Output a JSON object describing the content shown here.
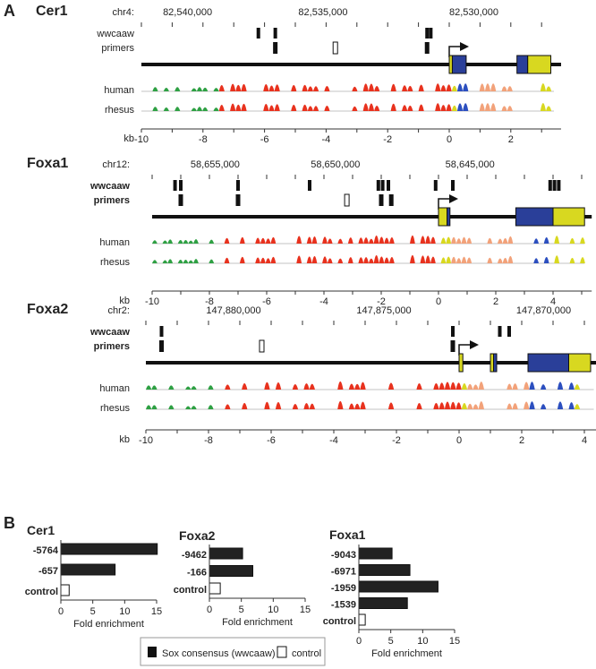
{
  "panel_a": {
    "label": "A",
    "track_labels": {
      "sites": "wwcaaw",
      "primers": "primers",
      "human": "human",
      "rhesus": "rhesus",
      "axis": "kb"
    },
    "loci": [
      {
        "name": "Cer1",
        "chrom": "chr4:",
        "coord_labels": [
          {
            "text": "82,540,000",
            "kb": -8.5
          },
          {
            "text": "82,535,000",
            "kb": -4.1
          },
          {
            "text": "82,530,000",
            "kb": 0.8
          }
        ],
        "range": [
          -10,
          3.4
        ],
        "axis_ticks": [
          -10,
          -8,
          -6,
          -4,
          -2,
          0,
          2
        ],
        "wwcaaw": [
          -6.2,
          -5.65,
          -0.72,
          -0.6
        ],
        "primers_sox": [
          -5.65,
          -0.72
        ],
        "primers_control": [
          -3.7
        ],
        "exons": [
          {
            "start": 0,
            "end": 0.1,
            "color": "#d8d820"
          },
          {
            "start": 0.1,
            "end": 0.55,
            "color": "#2a3f99"
          },
          {
            "start": 2.2,
            "end": 2.55,
            "color": "#2a3f99"
          },
          {
            "start": 2.55,
            "end": 3.3,
            "color": "#d8d820"
          }
        ]
      },
      {
        "name": "Foxa1",
        "chrom": "chr12:",
        "coord_labels": [
          {
            "text": "58,655,000",
            "kb": -7.8
          },
          {
            "text": "58,650,000",
            "kb": -3.6
          },
          {
            "text": "58,645,000",
            "kb": 1.1
          }
        ],
        "range": [
          -10,
          5.1
        ],
        "axis_ticks": [
          -10,
          -8,
          -6,
          -4,
          -2,
          0,
          2,
          4
        ],
        "wwcaaw": [
          -9.2,
          -9.0,
          -7.0,
          -4.5,
          -2.1,
          -1.95,
          -1.75,
          -0.1,
          0.5,
          3.9,
          4.05,
          4.2
        ],
        "primers_sox": [
          -9.0,
          -7.0,
          -2.0,
          -1.65
        ],
        "primers_control": [
          -3.2
        ],
        "exons": [
          {
            "start": 0,
            "end": 0.3,
            "color": "#d8d820"
          },
          {
            "start": 0.3,
            "end": 0.4,
            "color": "#2a3f99"
          },
          {
            "start": 2.7,
            "end": 4.0,
            "color": "#2a3f99"
          },
          {
            "start": 4.0,
            "end": 5.1,
            "color": "#d8d820"
          }
        ]
      },
      {
        "name": "Foxa2",
        "chrom": "chr2:",
        "coord_labels": [
          {
            "text": "147,880,000",
            "kb": -7.2
          },
          {
            "text": "147,875,000",
            "kb": -2.4
          },
          {
            "text": "147,870,000",
            "kb": 2.7
          }
        ],
        "range": [
          -10,
          4.3
        ],
        "axis_ticks": [
          -10,
          -8,
          -6,
          -4,
          -2,
          0,
          2,
          4
        ],
        "wwcaaw": [
          -9.5,
          -0.2,
          1.3,
          1.6
        ],
        "primers_sox": [
          -9.5,
          -0.2
        ],
        "primers_control": [
          -6.3
        ],
        "exons": [
          {
            "start": 0,
            "end": 0.12,
            "color": "#d8d820"
          },
          {
            "start": 1.0,
            "end": 1.1,
            "color": "#d8d820"
          },
          {
            "start": 1.1,
            "end": 1.2,
            "color": "#2a3f99"
          },
          {
            "start": 2.2,
            "end": 3.5,
            "color": "#2a3f99"
          },
          {
            "start": 3.5,
            "end": 4.2,
            "color": "#d8d820"
          }
        ]
      }
    ]
  },
  "panel_b": {
    "label": "B"
  },
  "chart_data": [
    {
      "type": "bar",
      "orientation": "horizontal",
      "title": "Cer1",
      "categories": [
        "-5764",
        "-657",
        "control"
      ],
      "values": [
        15.1,
        8.5,
        1.3
      ],
      "kinds": [
        "sox",
        "sox",
        "control"
      ],
      "xlabel": "Fold enrichment",
      "xlim": [
        0,
        15
      ],
      "xticks": [
        0,
        5,
        10,
        15
      ]
    },
    {
      "type": "bar",
      "orientation": "horizontal",
      "title": "Foxa2",
      "categories": [
        "-9462",
        "-166",
        "control"
      ],
      "values": [
        5.2,
        6.8,
        1.7
      ],
      "kinds": [
        "sox",
        "sox",
        "control"
      ],
      "xlabel": "Fold enrichment",
      "xlim": [
        0,
        15
      ],
      "xticks": [
        0,
        5,
        10,
        15
      ]
    },
    {
      "type": "bar",
      "orientation": "horizontal",
      "title": "Foxa1",
      "categories": [
        "-9043",
        "-6971",
        "-1959",
        "-1539",
        "control"
      ],
      "values": [
        5.2,
        8.0,
        12.4,
        7.6,
        1.0
      ],
      "kinds": [
        "sox",
        "sox",
        "sox",
        "sox",
        "control"
      ],
      "xlabel": "Fold enrichment",
      "xlim": [
        0,
        15
      ],
      "xticks": [
        0,
        5,
        10,
        15
      ]
    }
  ],
  "legend": {
    "sox": "Sox consensus (wwcaaw)",
    "control": "control"
  },
  "colors": {
    "bar": "#222222",
    "exon_blue": "#2a3f99",
    "exon_yellow": "#d8d820",
    "cons_red": "#e8321e",
    "cons_green": "#2ea043",
    "cons_salmon": "#f2a27a"
  }
}
